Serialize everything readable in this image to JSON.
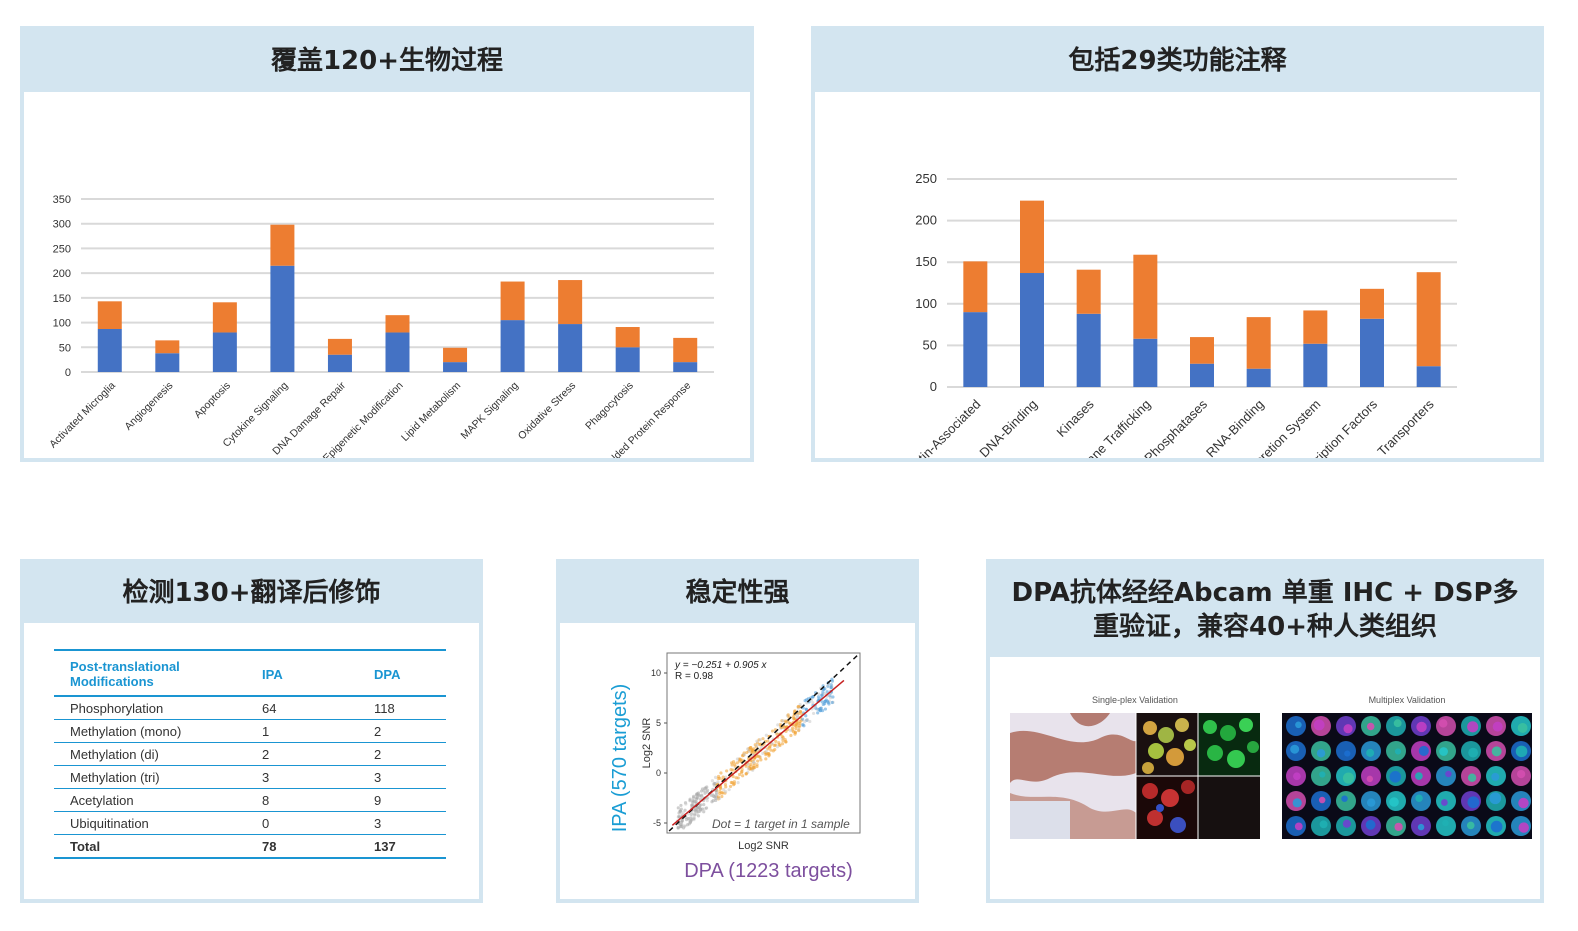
{
  "panels": {
    "bio": {
      "title": "覆盖120+生物过程"
    },
    "func": {
      "title": "包括29类功能注释"
    },
    "ptm": {
      "title": "检测130+翻译后修饰"
    },
    "stable": {
      "title": "稳定性强"
    },
    "valid": {
      "title": "DPA抗体经经Abcam 单重 IHC + DSP多重验证，兼容40+种人类组织"
    }
  },
  "colors": {
    "blue": "#4472c4",
    "orange": "#ed7d31",
    "header": "#d3e5f0",
    "table_accent": "#1a95d2"
  },
  "chart_data": [
    {
      "type": "bar",
      "stacked": true,
      "title": "",
      "categories": [
        "Activated Microglia",
        "Angiogenesis",
        "Apoptosis",
        "Cytokine Signaling",
        "DNA Damage Repair",
        "Epigenetic Modification",
        "Lipid Metabolism",
        "MAPK Signaling",
        "Oxidative Stress",
        "Phagocytosis",
        "Unfolded Protein Response"
      ],
      "series": [
        {
          "values": [
            87,
            38,
            80,
            215,
            35,
            80,
            20,
            105,
            97,
            50,
            20
          ],
          "color": "#4472c4"
        },
        {
          "values": [
            56,
            26,
            61,
            83,
            32,
            35,
            29,
            78,
            89,
            41,
            49
          ],
          "color": "#ed7d31"
        }
      ],
      "ylim": [
        0,
        350
      ],
      "yticks": [
        "0",
        "50",
        "100",
        "150",
        "200",
        "250",
        "300",
        "350"
      ],
      "grid": true
    },
    {
      "type": "bar",
      "stacked": true,
      "title": "",
      "categories": [
        "Chromatin-Associated",
        "DNA-Binding",
        "Kinases",
        "Membrane Trafficking",
        "Phosphatases",
        "RNA-Binding",
        "Secretion System",
        "Transcription Factors",
        "Transporters"
      ],
      "series": [
        {
          "values": [
            90,
            137,
            88,
            58,
            28,
            22,
            52,
            82,
            25
          ],
          "color": "#4472c4"
        },
        {
          "values": [
            61,
            87,
            53,
            101,
            32,
            62,
            40,
            36,
            113
          ],
          "color": "#ed7d31"
        }
      ],
      "ylim": [
        0,
        250
      ],
      "yticks": [
        "0",
        "50",
        "100",
        "150",
        "200",
        "250"
      ],
      "grid": true
    },
    {
      "type": "scatter",
      "title": "",
      "xlabel": "Log2 SNR",
      "ylabel": "Log2 SNR",
      "xlabel_outer": "DPA (1223 targets)",
      "ylabel_outer": "IPA (570 targets)",
      "equation": "y = −0.251 + 0.905 x",
      "r_value": "R = 0.98",
      "note": "Dot = 1 target in 1 sample",
      "yticks": [
        "10",
        "5",
        "0",
        "-5"
      ],
      "ylim": [
        -6,
        12
      ],
      "xlim": [
        -6,
        12
      ],
      "fit": {
        "intercept": -0.251,
        "slope": 0.905
      }
    }
  ],
  "ptm_table": {
    "headers": [
      "Post-translational Modifications",
      "IPA",
      "DPA"
    ],
    "rows": [
      [
        "Phosphorylation",
        "64",
        "118"
      ],
      [
        "Methylation (mono)",
        "1",
        "2"
      ],
      [
        "Methylation (di)",
        "2",
        "2"
      ],
      [
        "Methylation (tri)",
        "3",
        "3"
      ],
      [
        "Acetylation",
        "8",
        "9"
      ],
      [
        "Ubiquitination",
        "0",
        "3"
      ]
    ],
    "total": [
      "Total",
      "78",
      "137"
    ]
  },
  "validation": {
    "single_caption": "Single-plex Validation",
    "multi_caption": "Multiplex Validation"
  }
}
